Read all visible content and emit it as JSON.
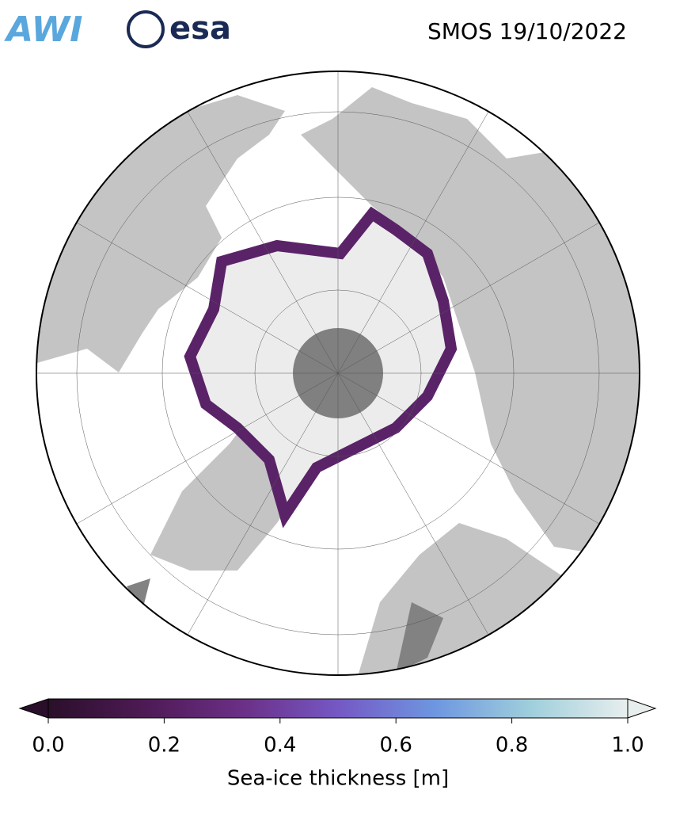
{
  "header": {
    "logos": [
      "AWI",
      "esa"
    ],
    "title": "SMOS 19/10/2022"
  },
  "chart_data": {
    "type": "colorbar",
    "xlabel": "Sea-ice thickness [m]",
    "xlim": [
      0,
      1
    ],
    "xticks": [
      {
        "value": 0,
        "label": "0.0"
      },
      0.2,
      0.4,
      0.6,
      0.8,
      {
        "value": 1,
        "label": "1.0"
      }
    ],
    "colormap": [
      "#2a0f2a",
      "#4e1a55",
      "#6b2f86",
      "#7558c4",
      "#6e96e0",
      "#9fcfdc",
      "#e8eeee"
    ],
    "extend": "both"
  }
}
